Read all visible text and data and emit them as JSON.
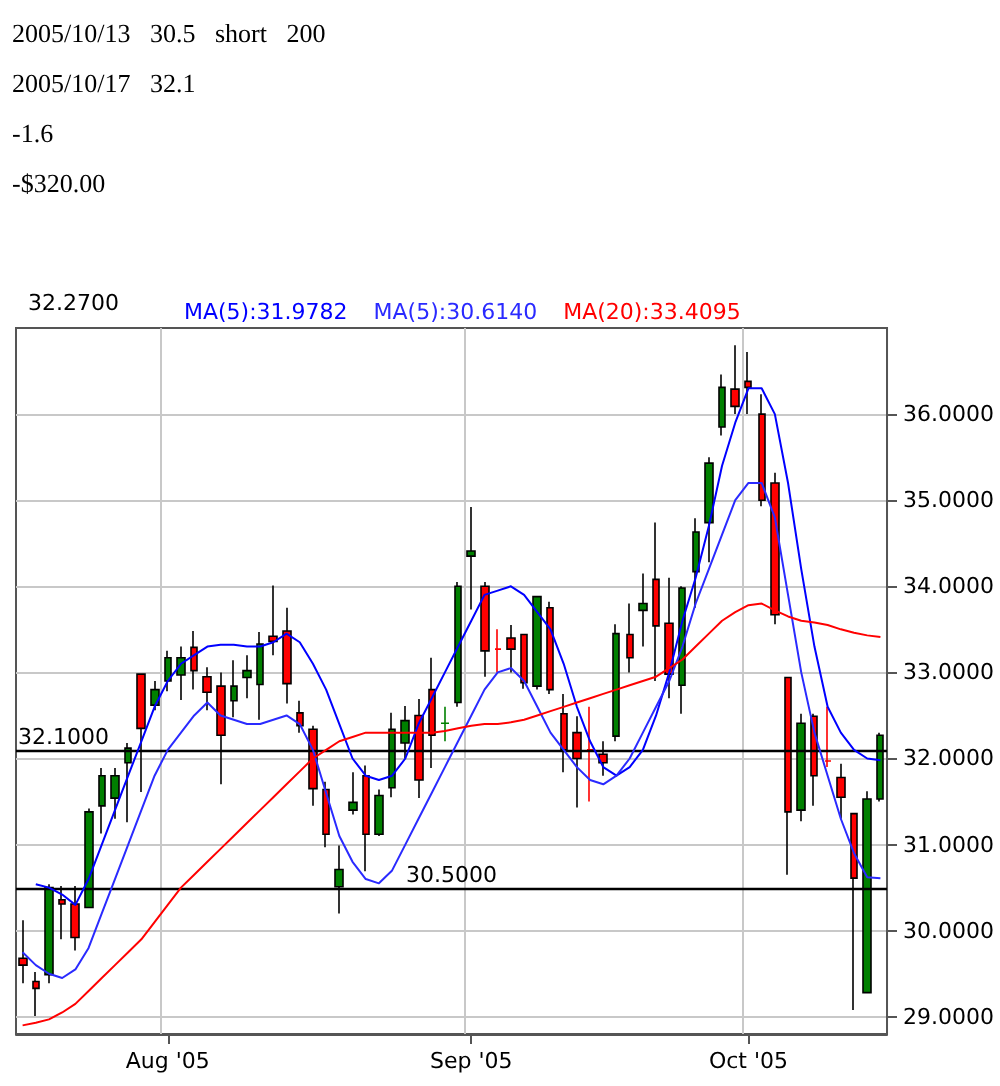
{
  "chart_data": {
    "type": "candlestick",
    "annotations": [
      "2005/10/13   30.5   short   200",
      "2005/10/17   32.1",
      "-1.6",
      "-$320.00",
      "32.2700"
    ],
    "categories": [
      null,
      null,
      null,
      null,
      null,
      null,
      null,
      null,
      null,
      null,
      null,
      "Aug '05",
      null,
      null,
      null,
      null,
      null,
      null,
      null,
      null,
      null,
      null,
      null,
      null,
      null,
      null,
      null,
      null,
      null,
      null,
      null,
      null,
      null,
      null,
      "Sep '05",
      null,
      null,
      null,
      null,
      null,
      null,
      null,
      null,
      null,
      null,
      null,
      null,
      null,
      null,
      null,
      null,
      null,
      null,
      null,
      null,
      "Oct '05",
      null,
      null,
      null,
      null,
      null,
      null,
      null,
      null,
      null,
      null
    ],
    "ohlc": [
      [
        29.68,
        30.12,
        29.39,
        29.6
      ],
      [
        29.41,
        29.52,
        29.01,
        29.33
      ],
      [
        29.49,
        30.54,
        29.39,
        30.5
      ],
      [
        30.36,
        30.52,
        29.9,
        30.31
      ],
      [
        30.31,
        30.52,
        29.77,
        29.92
      ],
      [
        30.27,
        31.42,
        30.27,
        31.38
      ],
      [
        31.45,
        31.89,
        31.13,
        31.8
      ],
      [
        31.54,
        31.89,
        31.3,
        31.8
      ],
      [
        31.95,
        32.18,
        31.26,
        32.12
      ],
      [
        32.98,
        32.98,
        31.61,
        32.35
      ],
      [
        32.62,
        32.9,
        32.56,
        32.8
      ],
      [
        32.9,
        33.25,
        32.78,
        33.17
      ],
      [
        32.97,
        33.3,
        32.68,
        33.17
      ],
      [
        33.29,
        33.48,
        32.8,
        33.02
      ],
      [
        32.95,
        33.06,
        32.56,
        32.77
      ],
      [
        32.84,
        33.0,
        31.7,
        32.27
      ],
      [
        32.67,
        33.14,
        32.48,
        32.84
      ],
      [
        32.94,
        33.2,
        32.7,
        33.02
      ],
      [
        32.86,
        33.47,
        32.45,
        33.33
      ],
      [
        33.42,
        34.01,
        33.2,
        33.36
      ],
      [
        33.48,
        33.75,
        32.64,
        32.87
      ],
      [
        32.53,
        32.67,
        32.3,
        32.38
      ],
      [
        32.34,
        32.38,
        31.45,
        31.65
      ],
      [
        31.64,
        31.73,
        30.97,
        31.12
      ],
      [
        30.51,
        30.99,
        30.2,
        30.71
      ],
      [
        31.4,
        31.84,
        31.35,
        31.49
      ],
      [
        31.8,
        31.92,
        30.69,
        31.12
      ],
      [
        31.12,
        31.64,
        31.1,
        31.57
      ],
      [
        31.66,
        32.53,
        31.55,
        32.34
      ],
      [
        32.18,
        32.61,
        32.0,
        32.44
      ],
      [
        32.5,
        32.69,
        31.54,
        31.75
      ],
      [
        32.8,
        33.17,
        31.89,
        32.27
      ],
      [
        32.41,
        32.6,
        32.2,
        32.41
      ],
      [
        32.65,
        34.05,
        32.6,
        34.0
      ],
      [
        34.35,
        34.92,
        33.73,
        34.41
      ],
      [
        34.0,
        34.05,
        32.95,
        33.25
      ],
      [
        33.27,
        33.5,
        33.0,
        33.27
      ],
      [
        33.4,
        33.55,
        33.0,
        33.27
      ],
      [
        33.44,
        33.45,
        32.81,
        32.88
      ],
      [
        32.84,
        33.88,
        32.8,
        33.88
      ],
      [
        33.75,
        33.82,
        32.75,
        32.8
      ],
      [
        32.52,
        32.75,
        31.84,
        32.1
      ],
      [
        32.3,
        32.49,
        31.43,
        32.0
      ],
      [
        32.1,
        32.6,
        31.5,
        32.1
      ],
      [
        32.05,
        32.2,
        31.8,
        31.95
      ],
      [
        32.26,
        33.56,
        32.2,
        33.45
      ],
      [
        33.44,
        33.8,
        33.0,
        33.17
      ],
      [
        33.72,
        34.15,
        33.3,
        33.8
      ],
      [
        34.08,
        34.74,
        32.9,
        33.54
      ],
      [
        33.57,
        34.1,
        32.7,
        32.98
      ],
      [
        32.85,
        34.0,
        32.52,
        33.98
      ],
      [
        34.17,
        34.79,
        33.75,
        34.63
      ],
      [
        34.74,
        35.5,
        34.28,
        35.43
      ],
      [
        35.85,
        36.46,
        35.75,
        36.31
      ],
      [
        36.29,
        36.8,
        36.0,
        36.09
      ],
      [
        36.38,
        36.72,
        36.0,
        36.31
      ],
      [
        36.0,
        36.23,
        34.93,
        35.0
      ],
      [
        35.2,
        35.32,
        33.56,
        33.67
      ],
      [
        32.94,
        32.94,
        30.65,
        31.38
      ],
      [
        31.4,
        32.52,
        31.27,
        32.41
      ],
      [
        32.49,
        32.52,
        31.45,
        31.8
      ],
      [
        31.97,
        32.6,
        31.9,
        31.97
      ],
      [
        31.78,
        31.94,
        31.3,
        31.55
      ],
      [
        31.36,
        31.36,
        29.08,
        30.61
      ],
      [
        29.28,
        31.62,
        29.28,
        31.53
      ],
      [
        31.53,
        32.3,
        31.5,
        32.27
      ]
    ],
    "colors": [
      "#ff0000",
      "#ff0000",
      "#008000",
      "#ff0000",
      "#ff0000",
      "#008000",
      "#008000",
      "#008000",
      "#008000",
      "#ff0000",
      "#008000",
      "#008000",
      "#008000",
      "#ff0000",
      "#ff0000",
      "#ff0000",
      "#008000",
      "#008000",
      "#008000",
      "#ff0000",
      "#ff0000",
      "#ff0000",
      "#ff0000",
      "#ff0000",
      "#008000",
      "#008000",
      "#ff0000",
      "#008000",
      "#008000",
      "#008000",
      "#ff0000",
      "#ff0000",
      "#008000",
      "#008000",
      "#008000",
      "#ff0000",
      "#ff0000",
      "#ff0000",
      "#ff0000",
      "#008000",
      "#ff0000",
      "#ff0000",
      "#ff0000",
      "#ff0000",
      "#ff0000",
      "#008000",
      "#ff0000",
      "#008000",
      "#ff0000",
      "#ff0000",
      "#008000",
      "#008000",
      "#008000",
      "#008000",
      "#ff0000",
      "#ff0000",
      "#ff0000",
      "#ff0000",
      "#ff0000",
      "#008000",
      "#ff0000",
      "#ff0000",
      "#ff0000",
      "#ff0000",
      "#008000",
      "#008000"
    ],
    "series": [
      {
        "type": "line",
        "name": "MA(5):31.9782",
        "color": "#0000ff",
        "values": [
          null,
          30.54,
          30.5,
          30.42,
          30.3,
          30.6,
          31.0,
          31.4,
          31.8,
          32.2,
          32.6,
          32.9,
          33.1,
          33.2,
          33.3,
          33.32,
          33.32,
          33.3,
          33.3,
          33.35,
          33.45,
          33.35,
          33.1,
          32.8,
          32.4,
          32.0,
          31.8,
          31.75,
          31.8,
          32.0,
          32.4,
          32.7,
          33.0,
          33.3,
          33.6,
          33.9,
          33.95,
          34.0,
          33.9,
          33.7,
          33.5,
          33.1,
          32.6,
          32.2,
          31.9,
          31.8,
          31.9,
          32.1,
          32.5,
          33.0,
          33.6,
          34.1,
          34.7,
          35.4,
          35.9,
          36.3,
          36.3,
          36.0,
          35.2,
          34.2,
          33.3,
          32.6,
          32.3,
          32.1,
          32.0,
          31.98
        ]
      },
      {
        "type": "line",
        "name": "MA(5):30.6140",
        "color": "#2a2aff",
        "values": [
          29.75,
          29.6,
          29.5,
          29.45,
          29.55,
          29.8,
          30.2,
          30.6,
          31.0,
          31.4,
          31.8,
          32.1,
          32.3,
          32.5,
          32.65,
          32.5,
          32.45,
          32.4,
          32.4,
          32.45,
          32.5,
          32.4,
          32.1,
          31.6,
          31.1,
          30.8,
          30.6,
          30.55,
          30.7,
          31.0,
          31.3,
          31.6,
          31.9,
          32.2,
          32.5,
          32.8,
          33.0,
          33.05,
          32.9,
          32.6,
          32.3,
          32.1,
          31.9,
          31.75,
          31.7,
          31.8,
          32.0,
          32.3,
          32.6,
          32.9,
          33.3,
          33.8,
          34.2,
          34.6,
          35.0,
          35.2,
          35.2,
          34.8,
          33.9,
          33.0,
          32.3,
          31.8,
          31.3,
          30.9,
          30.62,
          30.61
        ]
      },
      {
        "type": "line",
        "name": "MA(20):33.4095",
        "color": "#ff0000",
        "values": [
          28.9,
          28.93,
          28.97,
          29.05,
          29.15,
          29.3,
          29.45,
          29.6,
          29.75,
          29.9,
          30.1,
          30.3,
          30.5,
          30.65,
          30.8,
          30.95,
          31.1,
          31.25,
          31.4,
          31.55,
          31.7,
          31.85,
          32.0,
          32.1,
          32.2,
          32.25,
          32.3,
          32.3,
          32.3,
          32.3,
          32.3,
          32.3,
          32.32,
          32.35,
          32.38,
          32.4,
          32.4,
          32.42,
          32.45,
          32.5,
          32.55,
          32.6,
          32.65,
          32.7,
          32.75,
          32.8,
          32.85,
          32.9,
          32.95,
          33.05,
          33.15,
          33.3,
          33.45,
          33.6,
          33.7,
          33.78,
          33.8,
          33.72,
          33.65,
          33.6,
          33.58,
          33.55,
          33.5,
          33.46,
          33.43,
          33.41
        ]
      }
    ],
    "ylim": [
      28.8,
      37.0
    ],
    "yticks": [
      {
        "value": 29,
        "label": "29.0000"
      },
      {
        "value": 30,
        "label": "30.0000"
      },
      {
        "value": 31,
        "label": "31.0000"
      },
      {
        "value": 32,
        "label": "32.0000"
      },
      {
        "value": 33,
        "label": "33.0000"
      },
      {
        "value": 34,
        "label": "34.0000"
      },
      {
        "value": 35,
        "label": "35.0000"
      },
      {
        "value": 36,
        "label": "36.0000"
      }
    ],
    "ref_lines": [
      {
        "axis": "y",
        "value": 32.1,
        "label": "32.1000",
        "color": "#000000"
      },
      {
        "axis": "y",
        "value": 30.5,
        "label": "30.5000",
        "color": "#000000"
      }
    ],
    "grid": true,
    "legend": "top left",
    "marker": "none"
  }
}
